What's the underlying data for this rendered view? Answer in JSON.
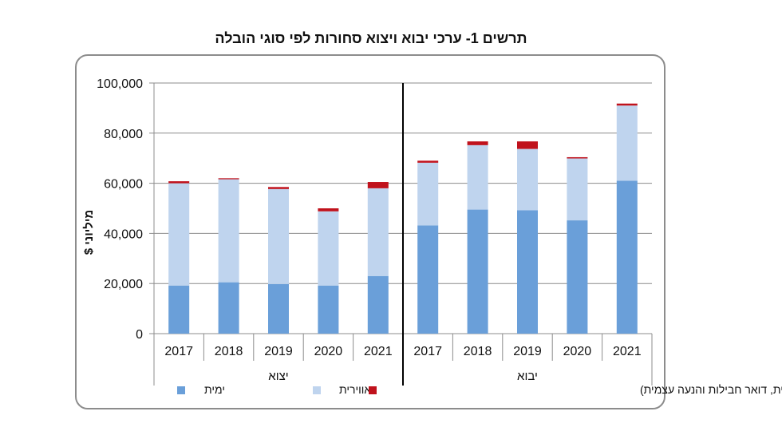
{
  "chart_data": {
    "type": "bar",
    "stacked": true,
    "title": "תרשים 1- ערכי יבוא ויצוא סחורות לפי סוגי הובלה",
    "ylabel": "מיליוני $",
    "xlabel": "",
    "ylim": [
      0,
      100000
    ],
    "yticks": [
      "0",
      "20,000",
      "40,000",
      "60,000",
      "80,000",
      "100,000"
    ],
    "grid": true,
    "legend_position": "bottom",
    "groups": [
      {
        "label": "יצוא",
        "categories": [
          "2017",
          "2018",
          "2019",
          "2020",
          "2021"
        ]
      },
      {
        "label": "יבוא",
        "categories": [
          "2017",
          "2018",
          "2019",
          "2020",
          "2021"
        ]
      }
    ],
    "categories": [
      "2017",
      "2018",
      "2019",
      "2020",
      "2021",
      "2017",
      "2018",
      "2019",
      "2020",
      "2021"
    ],
    "series": [
      {
        "name": "ימית",
        "color": "#6a9fd9",
        "values": [
          19200,
          20500,
          19800,
          19200,
          23000,
          43200,
          49500,
          49200,
          45200,
          61000
        ]
      },
      {
        "name": "אווירית",
        "color": "#bfd4ee",
        "values": [
          40800,
          41100,
          37900,
          29600,
          35000,
          25000,
          25700,
          24500,
          24700,
          30000
        ]
      },
      {
        "name": "אחר (יבשתית, דואר חבילות והנעה עצמית)",
        "color": "#c0121c",
        "values": [
          800,
          400,
          800,
          1200,
          2500,
          800,
          1500,
          3000,
          500,
          800
        ]
      }
    ]
  }
}
